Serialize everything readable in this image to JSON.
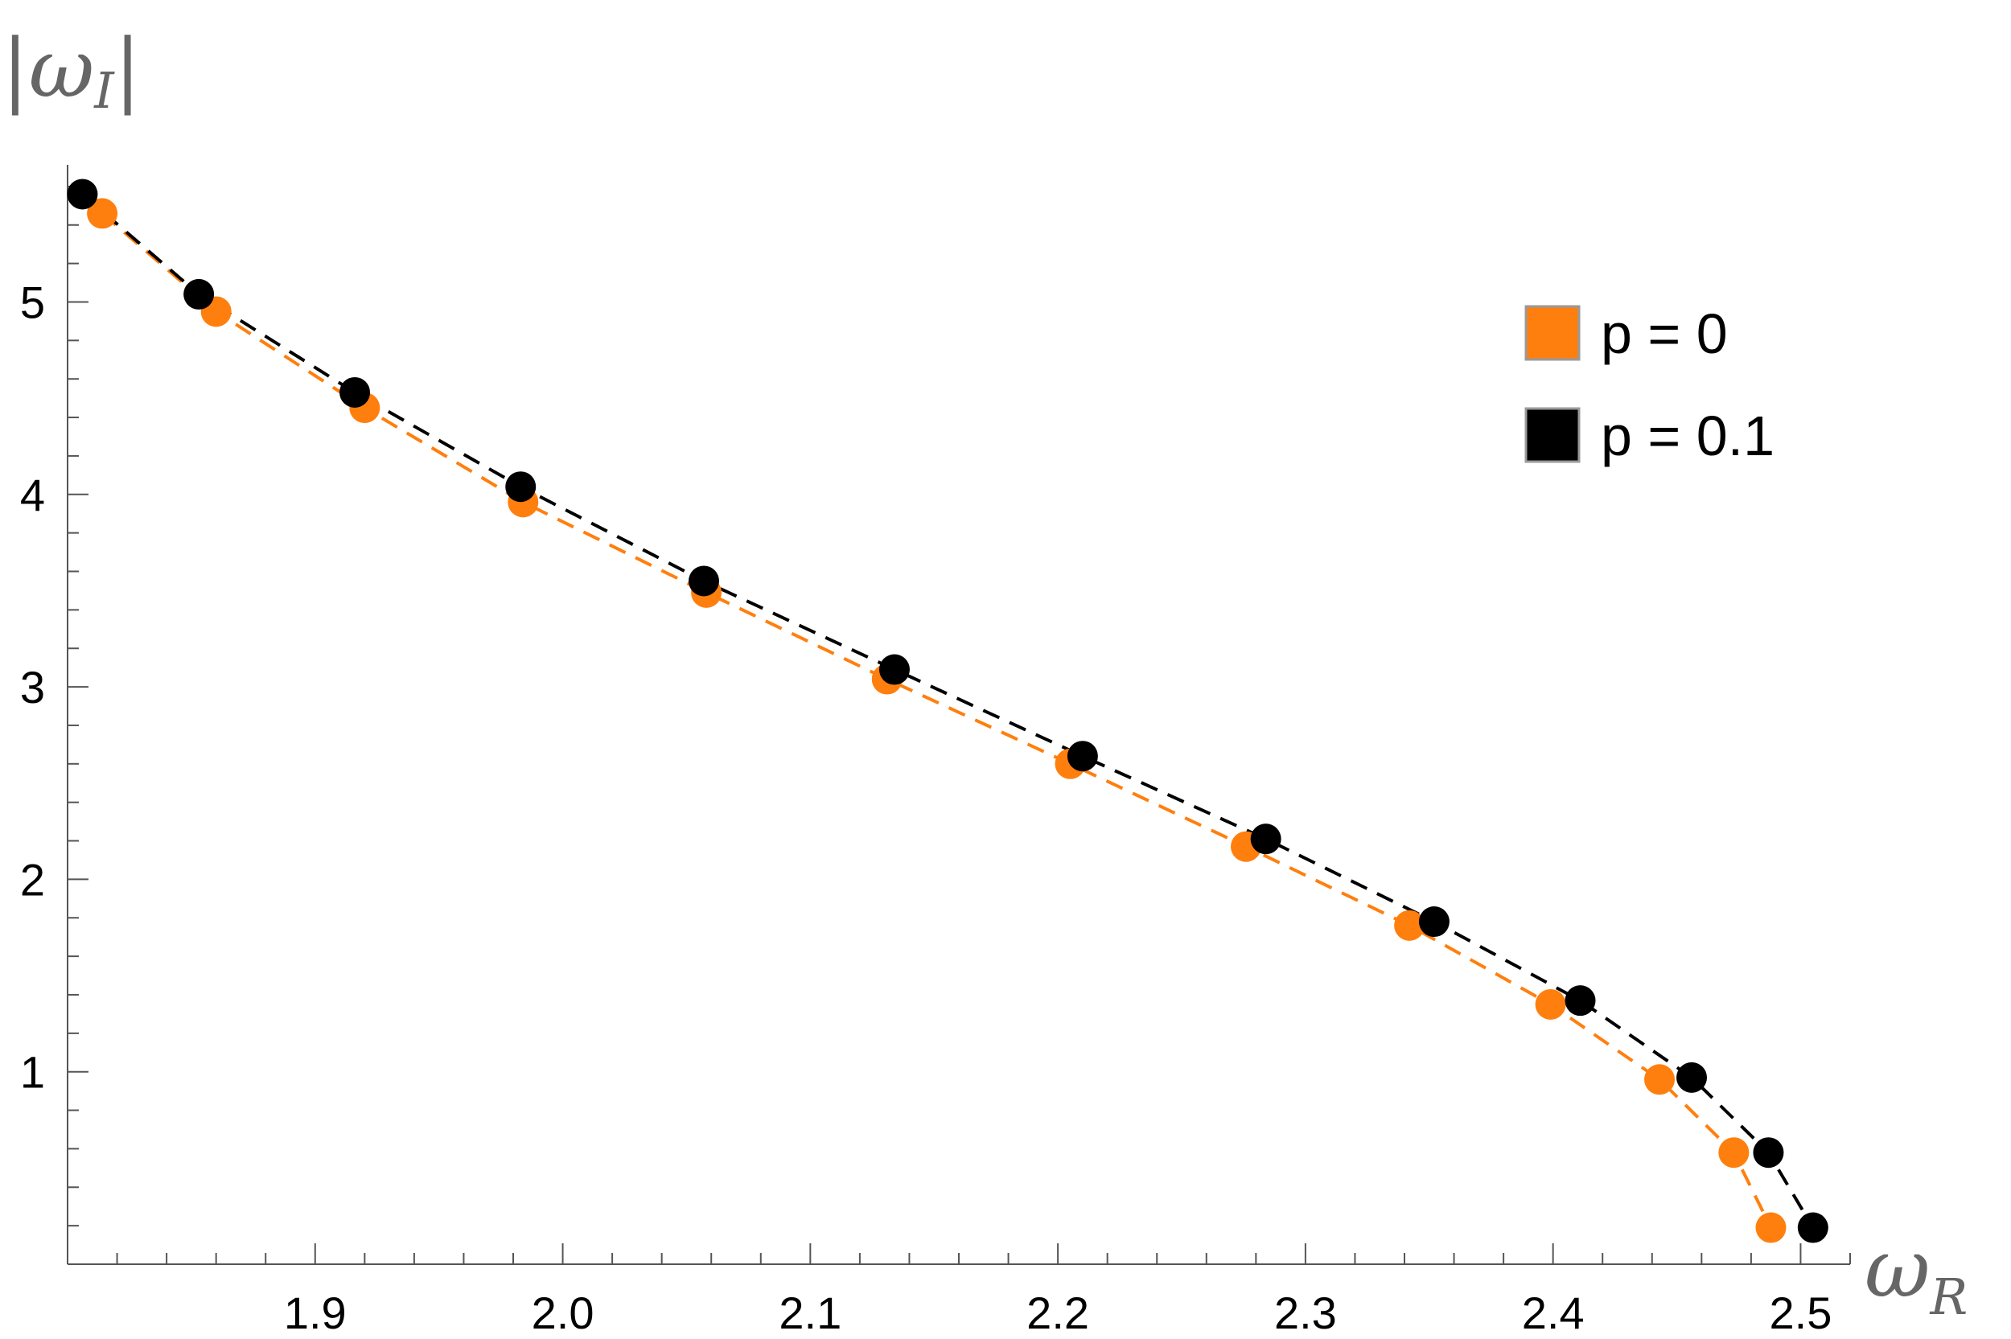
{
  "chart_data": {
    "type": "scatter",
    "xlabel": "ω_R",
    "ylabel": "|ω_I|",
    "xlim": [
      1.8,
      2.52
    ],
    "ylim": [
      0,
      5.75
    ],
    "xticks": [
      "1.9",
      "2.0",
      "2.1",
      "2.2",
      "2.3",
      "2.4",
      "2.5"
    ],
    "yticks": [
      "1",
      "2",
      "3",
      "4",
      "5"
    ],
    "legend_position": "top-right",
    "series": [
      {
        "name": "p = 0",
        "color": "#ff7f0e",
        "marker": "circle",
        "connector": "dashed",
        "points": [
          [
            1.814,
            5.46
          ],
          [
            1.86,
            4.95
          ],
          [
            1.92,
            4.45
          ],
          [
            1.984,
            3.96
          ],
          [
            2.058,
            3.49
          ],
          [
            2.131,
            3.04
          ],
          [
            2.205,
            2.6
          ],
          [
            2.276,
            2.17
          ],
          [
            2.342,
            1.76
          ],
          [
            2.399,
            1.35
          ],
          [
            2.443,
            0.96
          ],
          [
            2.473,
            0.58
          ],
          [
            2.488,
            0.19
          ]
        ]
      },
      {
        "name": "p = 0.1",
        "color": "#000000",
        "marker": "circle",
        "connector": "dashed",
        "points": [
          [
            1.806,
            5.56
          ],
          [
            1.853,
            5.04
          ],
          [
            1.916,
            4.53
          ],
          [
            1.983,
            4.04
          ],
          [
            2.057,
            3.55
          ],
          [
            2.134,
            3.09
          ],
          [
            2.21,
            2.64
          ],
          [
            2.284,
            2.21
          ],
          [
            2.352,
            1.78
          ],
          [
            2.411,
            1.37
          ],
          [
            2.456,
            0.97
          ],
          [
            2.487,
            0.58
          ],
          [
            2.505,
            0.19
          ]
        ]
      }
    ]
  }
}
